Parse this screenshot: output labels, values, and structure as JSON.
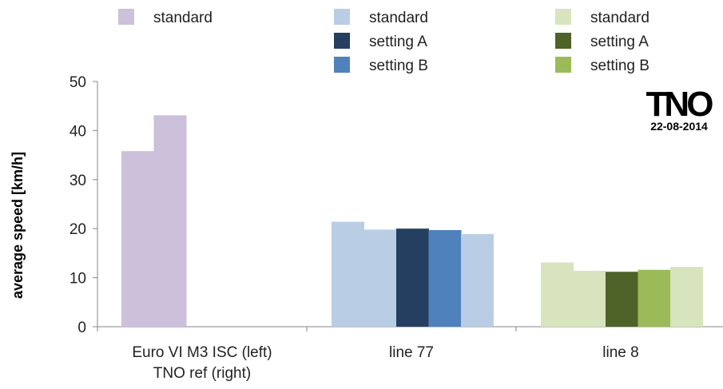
{
  "chart_data": {
    "type": "bar",
    "ylabel": "average speed [km/h]",
    "ylim": [
      0,
      50
    ],
    "yticks": [
      0,
      10,
      20,
      30,
      40,
      50
    ],
    "grid": false,
    "categories": [
      {
        "label_lines": [
          "Euro VI M3 ISC (left)",
          "TNO ref (right)"
        ]
      },
      {
        "label_lines": [
          "line 77"
        ]
      },
      {
        "label_lines": [
          "line 8"
        ]
      }
    ],
    "legend": {
      "placement": "top",
      "columns": [
        [
          {
            "label": "standard",
            "color": "#ccc0da"
          }
        ],
        [
          {
            "label": "standard",
            "color": "#b9cde5"
          },
          {
            "label": "setting A",
            "color": "#243f60"
          },
          {
            "label": "setting B",
            "color": "#4f81bd"
          }
        ],
        [
          {
            "label": "standard",
            "color": "#d7e4bd"
          },
          {
            "label": "setting A",
            "color": "#4f6228"
          },
          {
            "label": "setting B",
            "color": "#9bbb59"
          }
        ]
      ]
    },
    "bars": [
      {
        "category": 0,
        "slot": 0,
        "series": "standard",
        "value": 35.8,
        "color": "#ccc0da"
      },
      {
        "category": 0,
        "slot": 1,
        "series": "standard",
        "value": 43.1,
        "color": "#ccc0da"
      },
      {
        "category": 1,
        "slot": 0,
        "series": "standard",
        "value": 21.4,
        "color": "#b9cde5"
      },
      {
        "category": 1,
        "slot": 1,
        "series": "standard",
        "value": 19.8,
        "color": "#b9cde5"
      },
      {
        "category": 1,
        "slot": 2,
        "series": "setting A",
        "value": 20.0,
        "color": "#243f60"
      },
      {
        "category": 1,
        "slot": 3,
        "series": "setting B",
        "value": 19.7,
        "color": "#4f81bd"
      },
      {
        "category": 1,
        "slot": 4,
        "series": "standard",
        "value": 18.9,
        "color": "#b9cde5"
      },
      {
        "category": 2,
        "slot": 0,
        "series": "standard",
        "value": 13.1,
        "color": "#d7e4bd"
      },
      {
        "category": 2,
        "slot": 1,
        "series": "standard",
        "value": 11.4,
        "color": "#d7e4bd"
      },
      {
        "category": 2,
        "slot": 2,
        "series": "setting A",
        "value": 11.2,
        "color": "#4f6228"
      },
      {
        "category": 2,
        "slot": 3,
        "series": "setting B",
        "value": 11.6,
        "color": "#9bbb59"
      },
      {
        "category": 2,
        "slot": 4,
        "series": "standard",
        "value": 12.2,
        "color": "#d7e4bd"
      }
    ]
  },
  "logo": {
    "text": "TNO",
    "date": "22-08-2014"
  }
}
